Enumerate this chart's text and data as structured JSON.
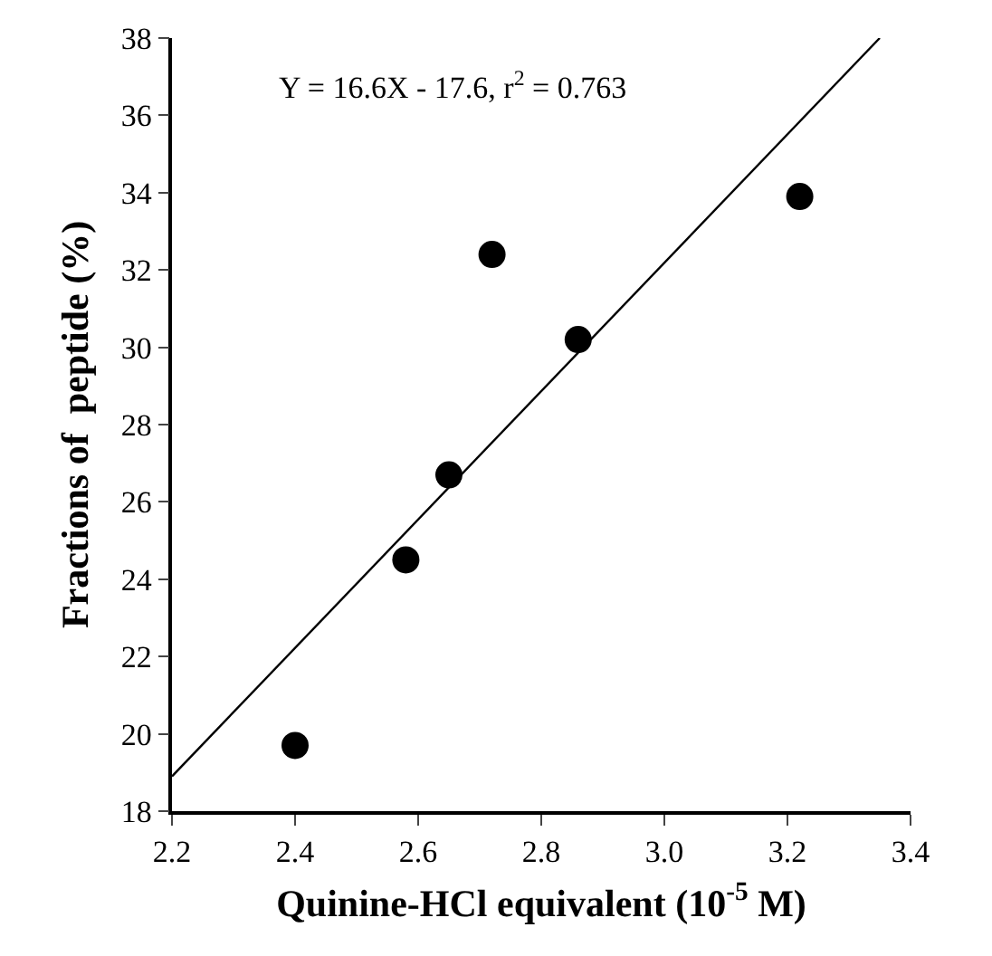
{
  "chart_data": {
    "type": "scatter",
    "xlabel": "Quinine-HCl equivalent (10$^{-5}$ M)",
    "ylabel": "Fractions of  peptide (%)",
    "annotations": [
      "Y = 16.6X - 17.6, r$^{2}$ = 0.763"
    ],
    "xlim": [
      2.2,
      3.4
    ],
    "xticks": [
      2.2,
      2.4,
      2.6,
      2.8,
      {
        "value": 3,
        "label": "3.0"
      },
      3.2,
      3.4
    ],
    "ylim": [
      18,
      38
    ],
    "yticks": [
      18,
      20,
      22,
      24,
      26,
      28,
      30,
      32,
      34,
      36,
      38
    ],
    "grid": false,
    "series": [
      {
        "marker": "circle",
        "color": "#000000",
        "x": [
          2.4,
          2.58,
          2.65,
          2.72,
          2.86,
          3.22
        ],
        "values": [
          19.7,
          24.5,
          26.7,
          32.4,
          30.2,
          33.9
        ]
      },
      {
        "type": "line",
        "color": "#000000",
        "line_style": "solid",
        "x": [
          2.2,
          3.35
        ],
        "values": [
          18.9,
          38
        ]
      }
    ]
  }
}
